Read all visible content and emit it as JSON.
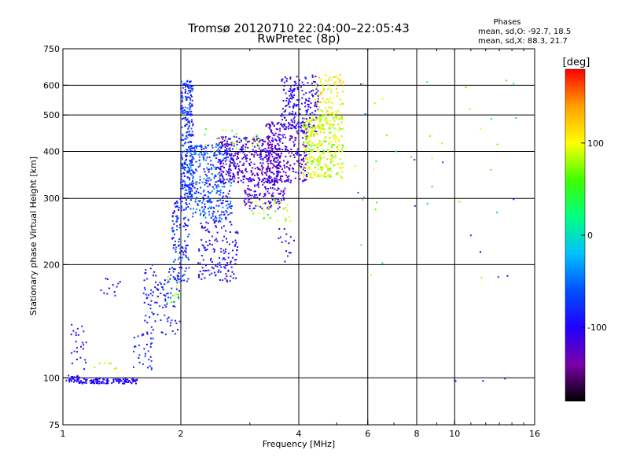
{
  "chart_data": {
    "type": "scatter",
    "title": "Tromsø 20120710 22:04:00–22:05:43",
    "subtitle": "RwPretec (8p)",
    "xlabel": "Frequency [MHz]",
    "ylabel": "Stationary phase Virtual Height [km]",
    "x_scale": "log",
    "y_scale": "log",
    "xlim": [
      1,
      16
    ],
    "ylim": [
      75,
      750
    ],
    "x_ticks": [
      {
        "v": 1,
        "label": "1"
      },
      {
        "v": 2,
        "label": "2"
      },
      {
        "v": 4,
        "label": "4"
      },
      {
        "v": 6,
        "label": "6"
      },
      {
        "v": 8,
        "label": "8"
      },
      {
        "v": 10,
        "label": "10"
      },
      {
        "v": 16,
        "label": "16"
      }
    ],
    "y_ticks": [
      {
        "v": 75,
        "label": "75"
      },
      {
        "v": 100,
        "label": "100"
      },
      {
        "v": 200,
        "label": "200"
      },
      {
        "v": 300,
        "label": "300"
      },
      {
        "v": 400,
        "label": "400"
      },
      {
        "v": 500,
        "label": "500"
      },
      {
        "v": 600,
        "label": "600"
      },
      {
        "v": 750,
        "label": "750"
      }
    ],
    "x_gridlines": [
      2,
      4,
      6,
      8,
      10
    ],
    "y_gridlines": [
      100,
      200,
      300,
      400,
      500,
      600
    ],
    "grid": true,
    "legend": {
      "heading": "Phases",
      "line1": "mean, sd,O: -92.7, 18.5",
      "line2": "mean, sd,X:  88.3, 21.7",
      "position": "top-right"
    },
    "colorbar": {
      "label": "[deg]",
      "range": [
        -180,
        180
      ],
      "ticks": [
        {
          "v": 100,
          "label": "100"
        },
        {
          "v": 0,
          "label": "0"
        },
        {
          "v": -100,
          "label": "-100"
        }
      ],
      "colors": [
        "#000000",
        "#7a00a8",
        "#2000ff",
        "#0050ff",
        "#00c0ff",
        "#00ff80",
        "#40ff00",
        "#ffff00",
        "#ffa000",
        "#ff0000"
      ]
    },
    "clusters": [
      {
        "x": [
          1.02,
          1.1
        ],
        "y": [
          97,
          102
        ],
        "phase": [
          -110,
          -80
        ],
        "n": 30
      },
      {
        "x": [
          1.1,
          1.55
        ],
        "y": [
          96.5,
          99.5
        ],
        "phase": [
          -110,
          -90
        ],
        "n": 120
      },
      {
        "x": [
          1.05,
          1.15
        ],
        "y": [
          105,
          140
        ],
        "phase": [
          -110,
          -70
        ],
        "n": 25
      },
      {
        "x": [
          1.2,
          1.4
        ],
        "y": [
          105,
          110
        ],
        "phase": [
          60,
          110
        ],
        "n": 8
      },
      {
        "x": [
          1.25,
          1.4
        ],
        "y": [
          165,
          185
        ],
        "phase": [
          -110,
          -80
        ],
        "n": 12
      },
      {
        "x": [
          1.5,
          1.7
        ],
        "y": [
          105,
          130
        ],
        "phase": [
          -110,
          -60
        ],
        "n": 30
      },
      {
        "x": [
          1.6,
          2.0
        ],
        "y": [
          130,
          200
        ],
        "phase": [
          -110,
          -60
        ],
        "n": 110
      },
      {
        "x": [
          1.7,
          2.0
        ],
        "y": [
          150,
          190
        ],
        "phase": [
          40,
          110
        ],
        "n": 12
      },
      {
        "x": [
          1.9,
          2.1
        ],
        "y": [
          180,
          300
        ],
        "phase": [
          -110,
          -50
        ],
        "n": 130
      },
      {
        "x": [
          2.0,
          2.15
        ],
        "y": [
          300,
          620
        ],
        "phase": [
          -110,
          -40
        ],
        "n": 280
      },
      {
        "x": [
          2.1,
          2.7
        ],
        "y": [
          260,
          420
        ],
        "phase": [
          -110,
          -30
        ],
        "n": 360
      },
      {
        "x": [
          2.2,
          2.8
        ],
        "y": [
          180,
          260
        ],
        "phase": [
          -120,
          -80
        ],
        "n": 140
      },
      {
        "x": [
          2.5,
          3.6
        ],
        "y": [
          330,
          440
        ],
        "phase": [
          -150,
          -90
        ],
        "n": 380
      },
      {
        "x": [
          2.9,
          3.7
        ],
        "y": [
          280,
          340
        ],
        "phase": [
          -140,
          -100
        ],
        "n": 120
      },
      {
        "x": [
          3.3,
          4.2
        ],
        "y": [
          330,
          480
        ],
        "phase": [
          -140,
          -100
        ],
        "n": 260
      },
      {
        "x": [
          3.6,
          4.5
        ],
        "y": [
          450,
          640
        ],
        "phase": [
          -120,
          -80
        ],
        "n": 200
      },
      {
        "x": [
          4.1,
          5.2
        ],
        "y": [
          340,
          500
        ],
        "phase": [
          60,
          120
        ],
        "n": 340
      },
      {
        "x": [
          4.4,
          5.2
        ],
        "y": [
          500,
          640
        ],
        "phase": [
          80,
          130
        ],
        "n": 90
      },
      {
        "x": [
          3.0,
          3.8
        ],
        "y": [
          260,
          300
        ],
        "phase": [
          40,
          110
        ],
        "n": 30
      },
      {
        "x": [
          2.3,
          3.2
        ],
        "y": [
          400,
          460
        ],
        "phase": [
          30,
          100
        ],
        "n": 25
      },
      {
        "x": [
          3.5,
          3.9
        ],
        "y": [
          200,
          250
        ],
        "phase": [
          -120,
          -80
        ],
        "n": 15
      },
      {
        "x": [
          5.5,
          14.5
        ],
        "y": [
          180,
          620
        ],
        "phase": [
          -120,
          140
        ],
        "n": 45
      },
      {
        "x": [
          10,
          15
        ],
        "y": [
          98,
          104
        ],
        "phase": [
          -110,
          -90
        ],
        "n": 4
      }
    ]
  }
}
